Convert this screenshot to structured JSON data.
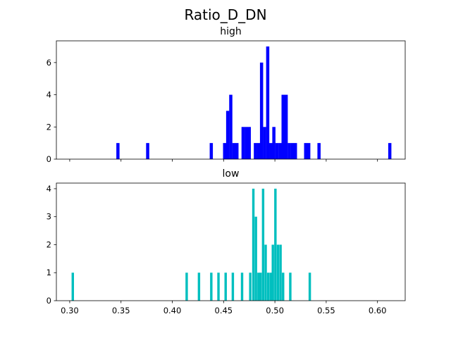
{
  "figure": {
    "suptitle": "Ratio_D_DN"
  },
  "chart_data": [
    {
      "type": "bar",
      "title": "high",
      "color": "#0000ff",
      "xlim": [
        0.287,
        0.627
      ],
      "ylim": [
        0,
        7.35
      ],
      "xticks": [
        0.3,
        0.35,
        0.4,
        0.45,
        0.5,
        0.55,
        0.6
      ],
      "xtick_labels_visible": false,
      "yticks": [
        0,
        2,
        4,
        6
      ],
      "ytick_labels": [
        "0",
        "2",
        "4",
        "6"
      ],
      "bin_width": 0.0031,
      "bins": [
        {
          "x": 0.347,
          "count": 1
        },
        {
          "x": 0.376,
          "count": 1
        },
        {
          "x": 0.438,
          "count": 1
        },
        {
          "x": 0.451,
          "count": 1
        },
        {
          "x": 0.454,
          "count": 3
        },
        {
          "x": 0.457,
          "count": 4
        },
        {
          "x": 0.46,
          "count": 1
        },
        {
          "x": 0.463,
          "count": 1
        },
        {
          "x": 0.469,
          "count": 2
        },
        {
          "x": 0.472,
          "count": 2
        },
        {
          "x": 0.475,
          "count": 2
        },
        {
          "x": 0.481,
          "count": 1
        },
        {
          "x": 0.484,
          "count": 1
        },
        {
          "x": 0.487,
          "count": 6
        },
        {
          "x": 0.49,
          "count": 2
        },
        {
          "x": 0.493,
          "count": 7
        },
        {
          "x": 0.496,
          "count": 1
        },
        {
          "x": 0.499,
          "count": 2
        },
        {
          "x": 0.502,
          "count": 1
        },
        {
          "x": 0.505,
          "count": 1
        },
        {
          "x": 0.508,
          "count": 4
        },
        {
          "x": 0.511,
          "count": 4
        },
        {
          "x": 0.514,
          "count": 1
        },
        {
          "x": 0.517,
          "count": 1
        },
        {
          "x": 0.52,
          "count": 1
        },
        {
          "x": 0.53,
          "count": 1
        },
        {
          "x": 0.533,
          "count": 1
        },
        {
          "x": 0.543,
          "count": 1
        },
        {
          "x": 0.612,
          "count": 1
        }
      ]
    },
    {
      "type": "bar",
      "title": "low",
      "color": "#00bfbf",
      "xlim": [
        0.287,
        0.627
      ],
      "ylim": [
        0,
        4.2
      ],
      "xticks": [
        0.3,
        0.35,
        0.4,
        0.45,
        0.5,
        0.55,
        0.6
      ],
      "xtick_labels": [
        "0.30",
        "0.35",
        "0.40",
        "0.45",
        "0.50",
        "0.55",
        "0.60"
      ],
      "xtick_labels_visible": true,
      "yticks": [
        0,
        1,
        2,
        3,
        4
      ],
      "ytick_labels": [
        "0",
        "1",
        "2",
        "3",
        "4"
      ],
      "bin_width": 0.00235,
      "bins": [
        {
          "x": 0.303,
          "count": 1
        },
        {
          "x": 0.414,
          "count": 1
        },
        {
          "x": 0.426,
          "count": 1
        },
        {
          "x": 0.438,
          "count": 1
        },
        {
          "x": 0.445,
          "count": 1
        },
        {
          "x": 0.452,
          "count": 1
        },
        {
          "x": 0.459,
          "count": 1
        },
        {
          "x": 0.468,
          "count": 1
        },
        {
          "x": 0.476,
          "count": 1
        },
        {
          "x": 0.479,
          "count": 4
        },
        {
          "x": 0.4815,
          "count": 3
        },
        {
          "x": 0.484,
          "count": 1
        },
        {
          "x": 0.486,
          "count": 1
        },
        {
          "x": 0.4885,
          "count": 4
        },
        {
          "x": 0.491,
          "count": 2
        },
        {
          "x": 0.4935,
          "count": 1
        },
        {
          "x": 0.496,
          "count": 1
        },
        {
          "x": 0.498,
          "count": 2
        },
        {
          "x": 0.5005,
          "count": 4
        },
        {
          "x": 0.503,
          "count": 2
        },
        {
          "x": 0.5055,
          "count": 2
        },
        {
          "x": 0.508,
          "count": 1
        },
        {
          "x": 0.515,
          "count": 1
        },
        {
          "x": 0.534,
          "count": 1
        }
      ]
    }
  ]
}
